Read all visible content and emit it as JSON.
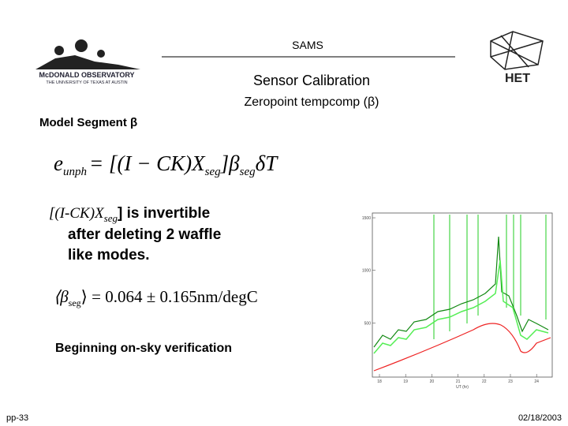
{
  "header": {
    "logo_left": {
      "name": "McDONALD OBSERVATORY",
      "subtitle": "THE UNIVERSITY OF TEXAS AT AUSTIN"
    },
    "title": "SAMS",
    "logo_right": "HET"
  },
  "slide": {
    "heading": "Sensor Calibration",
    "subheading": "Zeropoint tempcomp (β)",
    "section": "Model Segment β",
    "equation1": {
      "lhs": "e",
      "lhs_sub": "unph",
      "body": "= [(I − CK)X",
      "sub1": "seg",
      "mid": "]β",
      "sub2": "seg",
      "end": "δT"
    },
    "bullet": {
      "open": "[(I-CK)X",
      "sub": "seg",
      "close": "] is  invertible",
      "line2": "after deleting 2 waffle",
      "line3": "like modes."
    },
    "equation2": {
      "open": "⟨β",
      "sub": "seg",
      "body": "⟩ = 0.064 ± 0.165nm/degC"
    },
    "note": "Beginning on-sky verification",
    "plot": {
      "yticks": [
        1500,
        1000,
        500
      ],
      "xticks": [
        18,
        19,
        20,
        21,
        22,
        23,
        24
      ],
      "xlabel": "UT (hr)"
    }
  },
  "footer": {
    "left": "pp-33",
    "right": "02/18/2003"
  }
}
